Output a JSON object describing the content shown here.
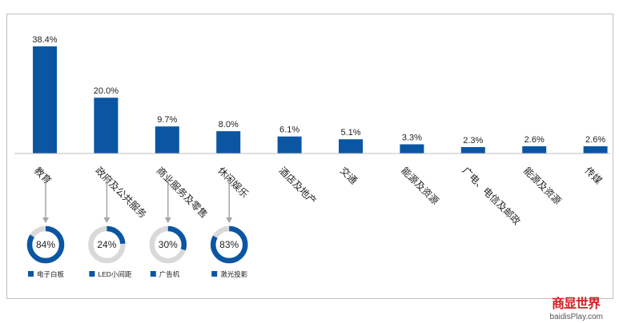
{
  "chart_data": {
    "type": "bar",
    "categories": [
      "教育",
      "政府及公共服务",
      "商业服务及零售",
      "休闲娱乐",
      "酒店及地产",
      "交通",
      "能源及资源",
      "广电、电信及邮政",
      "能源及资源",
      "传媒"
    ],
    "values": [
      38.4,
      20.0,
      9.7,
      8.0,
      6.1,
      5.1,
      3.3,
      2.3,
      2.6,
      2.6
    ],
    "value_labels": [
      "38.4%",
      "20.0%",
      "9.7%",
      "8.0%",
      "6.1%",
      "5.1%",
      "3.3%",
      "2.3%",
      "2.6%",
      "2.6%"
    ],
    "title": "",
    "xlabel": "",
    "ylabel": "",
    "ylim": [
      0,
      40
    ],
    "grid": false,
    "bar_color": "#0a56a3"
  },
  "donuts": [
    {
      "category": "教育",
      "value": 84,
      "label": "84%",
      "legend": "电子白板"
    },
    {
      "category": "政府及公共服务",
      "value": 24,
      "label": "24%",
      "legend": "LED小间距"
    },
    {
      "category": "商业服务及零售",
      "value": 30,
      "label": "30%",
      "legend": "广告机"
    },
    {
      "category": "休闲娱乐",
      "value": 83,
      "label": "83%",
      "legend": "激光投影"
    }
  ],
  "colors": {
    "primary": "#0a56a3",
    "ring_bg": "#d9d9d9",
    "arrow": "#a6a6a6",
    "axis": "#bfbfbf"
  },
  "watermark": {
    "cn": "商显世界",
    "en": "baidisPlay.com"
  }
}
